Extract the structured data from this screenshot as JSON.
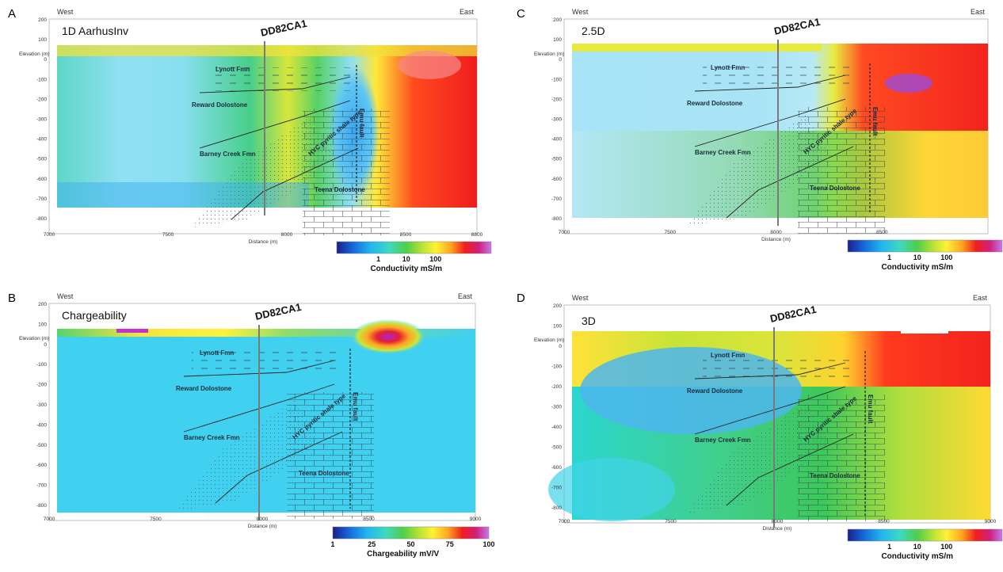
{
  "chart_data": [
    {
      "type": "heatmap",
      "panel_letter": "A",
      "title": "1D AarhusInv",
      "west": "West",
      "east": "East",
      "drillhole": "DD82CA1",
      "xlabel": "Distance (m)",
      "ylabel": "Elevation (m)",
      "xlim": [
        7000,
        8800
      ],
      "ylim": [
        -850,
        200
      ],
      "xticks": [
        "7000",
        "7500",
        "8000",
        "8500",
        "8800"
      ],
      "yticks": [
        "200",
        "100",
        "0",
        "-100",
        "-200",
        "-300",
        "-400",
        "-500",
        "-600",
        "-700",
        "-800"
      ],
      "geo_labels": [
        "Lynott Fmn",
        "Reward Dolostone",
        "HYC pyritic shale type",
        "Barney Creek Fmn",
        "Teena Dolostone",
        "Emu fault"
      ],
      "colorbar": {
        "label": "Conductivity mS/m",
        "ticks": [
          "1",
          "10",
          "100"
        ],
        "scale": "log"
      }
    },
    {
      "type": "heatmap",
      "panel_letter": "C",
      "title": "2.5D",
      "west": "West",
      "east": "East",
      "drillhole": "DD82CA1",
      "xlabel": "Distance (m)",
      "ylabel": "Elevation (m)",
      "xlim": [
        7000,
        9000
      ],
      "ylim": [
        -850,
        200
      ],
      "xticks": [
        "7000",
        "7500",
        "8000",
        "8500"
      ],
      "yticks": [
        "200",
        "100",
        "0",
        "-100",
        "-200",
        "-300",
        "-400",
        "-500",
        "-600",
        "-700",
        "-800"
      ],
      "geo_labels": [
        "Lynott Fmn",
        "Reward Dolostone",
        "HYC pyritic shale type",
        "Barney Creek Fmn",
        "Teena Dolostone",
        "Emu fault"
      ],
      "colorbar": {
        "label": "Conductivity mS/m",
        "ticks": [
          "1",
          "10",
          "100"
        ],
        "scale": "log"
      }
    },
    {
      "type": "heatmap",
      "panel_letter": "B",
      "title": "Chargeability",
      "west": "West",
      "east": "East",
      "drillhole": "DD82CA1",
      "xlabel": "Distance (m)",
      "ylabel": "Elevation (m)",
      "xlim": [
        7000,
        9000
      ],
      "ylim": [
        -850,
        200
      ],
      "xticks": [
        "7000",
        "7500",
        "8000",
        "8500",
        "9000"
      ],
      "yticks": [
        "200",
        "100",
        "0",
        "-100",
        "-200",
        "-300",
        "-400",
        "-500",
        "-600",
        "-700",
        "-800"
      ],
      "geo_labels": [
        "Lynott Fmn",
        "Reward Dolostone",
        "HYC pyritic shale type",
        "Barney Creek Fmn",
        "Teena Dolostone",
        "Emu fault"
      ],
      "colorbar": {
        "label": "Chargeability mV/V",
        "ticks": [
          "1",
          "25",
          "50",
          "75",
          "100"
        ],
        "scale": "linear"
      }
    },
    {
      "type": "heatmap",
      "panel_letter": "D",
      "title": "3D",
      "west": "West",
      "east": "East",
      "drillhole": "DD82CA1",
      "xlabel": "Distance (m)",
      "ylabel": "Elevation (m)",
      "xlim": [
        7000,
        9000
      ],
      "ylim": [
        -850,
        200
      ],
      "xticks": [
        "7000",
        "7500",
        "8000",
        "8500",
        "9000"
      ],
      "yticks": [
        "200",
        "100",
        "0",
        "-100",
        "-200",
        "-300",
        "-400",
        "-500",
        "-600",
        "-700",
        "-800"
      ],
      "geo_labels": [
        "Lynott Fmn",
        "Reward Dolostone",
        "HYC pyritic shale type",
        "Barney Creek Fmn",
        "Teena Dolostone",
        "Emu fault"
      ],
      "colorbar": {
        "label": "Conductivity mS/m",
        "ticks": [
          "1",
          "10",
          "100"
        ],
        "scale": "log"
      }
    }
  ]
}
